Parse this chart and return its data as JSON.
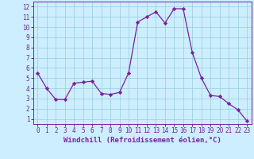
{
  "x": [
    0,
    1,
    2,
    3,
    4,
    5,
    6,
    7,
    8,
    9,
    10,
    11,
    12,
    13,
    14,
    15,
    16,
    17,
    18,
    19,
    20,
    21,
    22,
    23
  ],
  "y": [
    5.5,
    4.0,
    2.9,
    2.9,
    4.5,
    4.6,
    4.7,
    3.5,
    3.4,
    3.6,
    5.5,
    10.5,
    11.0,
    11.5,
    10.4,
    11.8,
    11.8,
    7.5,
    5.0,
    3.3,
    3.2,
    2.5,
    1.9,
    0.8
  ],
  "line_color": "#7b1fa2",
  "marker": "D",
  "marker_size": 2.2,
  "bg_color": "#cceeff",
  "grid_color": "#99ccdd",
  "xlabel": "Windchill (Refroidissement éolien,°C)",
  "xlim": [
    -0.5,
    23.5
  ],
  "ylim": [
    0.5,
    12.5
  ],
  "xticks": [
    0,
    1,
    2,
    3,
    4,
    5,
    6,
    7,
    8,
    9,
    10,
    11,
    12,
    13,
    14,
    15,
    16,
    17,
    18,
    19,
    20,
    21,
    22,
    23
  ],
  "yticks": [
    1,
    2,
    3,
    4,
    5,
    6,
    7,
    8,
    9,
    10,
    11,
    12
  ],
  "tick_fontsize": 5.5,
  "xlabel_fontsize": 6.5,
  "spine_color": "#7b1fa2"
}
